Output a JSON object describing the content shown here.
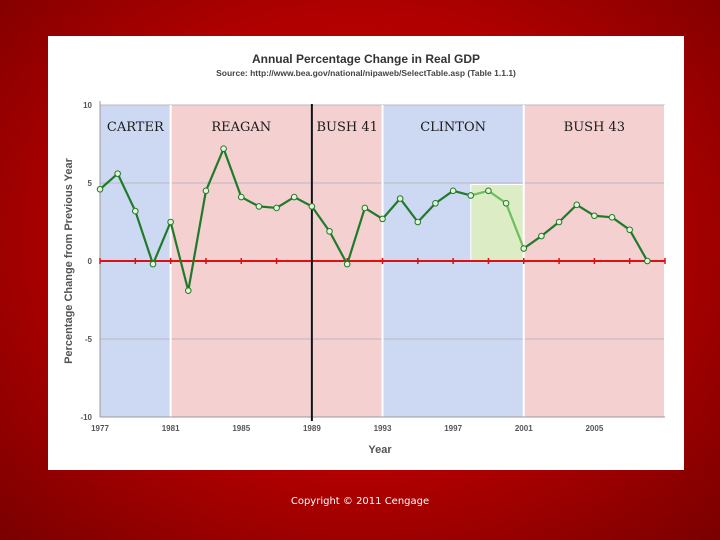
{
  "chart_data": {
    "type": "line",
    "title": "Annual Percentage Change in Real GDP",
    "subtitle": "Source: http://www.bea.gov/national/nipaweb/SelectTable.asp (Table 1.1.1)",
    "xlabel": "Year",
    "ylabel": "Percentage Change from Previous Year",
    "xlim": [
      1977,
      2009
    ],
    "ylim": [
      -10,
      10
    ],
    "x_ticks": [
      "1977",
      "1981",
      "1985",
      "1989",
      "1993",
      "1997",
      "2001",
      "2005"
    ],
    "y_ticks": [
      "10",
      "5",
      "0",
      "-5",
      "-10"
    ],
    "grid": true,
    "x": [
      1977,
      1978,
      1979,
      1980,
      1981,
      1982,
      1983,
      1984,
      1985,
      1986,
      1987,
      1988,
      1989,
      1990,
      1991,
      1992,
      1993,
      1994,
      1995,
      1996,
      1997,
      1998,
      1999,
      2000,
      2001,
      2002,
      2003,
      2004,
      2005,
      2006,
      2007,
      2008
    ],
    "values": [
      4.6,
      5.6,
      3.2,
      -0.2,
      2.5,
      -1.9,
      4.5,
      7.2,
      4.1,
      3.5,
      3.4,
      4.1,
      3.5,
      1.9,
      -0.2,
      3.4,
      2.7,
      4.0,
      2.5,
      3.7,
      4.5,
      4.2,
      4.5,
      3.7,
      0.8,
      1.6,
      2.5,
      3.6,
      2.9,
      2.8,
      2.0,
      0.0
    ],
    "colors": {
      "democrat_band": "#cdd9f2",
      "republican_band": "#f4d0d0",
      "highlight_band": "#dcecc4",
      "line": "#1f7a2a",
      "highlight_line": "#6cbf5c",
      "zero_line": "#dd1111",
      "marker_fill": "#e6f4d8"
    },
    "administrations": [
      {
        "label": "CARTER",
        "start": 1977,
        "end": 1981,
        "party": "D"
      },
      {
        "label": "REAGAN",
        "start": 1981,
        "end": 1989,
        "party": "R"
      },
      {
        "label": "BUSH 41",
        "start": 1989,
        "end": 1993,
        "party": "R"
      },
      {
        "label": "CLINTON",
        "start": 1993,
        "end": 2001,
        "party": "D"
      },
      {
        "label": "BUSH 43",
        "start": 2001,
        "end": 2009,
        "party": "R"
      }
    ],
    "highlight": {
      "start": 1998,
      "end": 2001
    }
  },
  "footer": {
    "copyright": "Copyright © 2011 Cengage"
  }
}
